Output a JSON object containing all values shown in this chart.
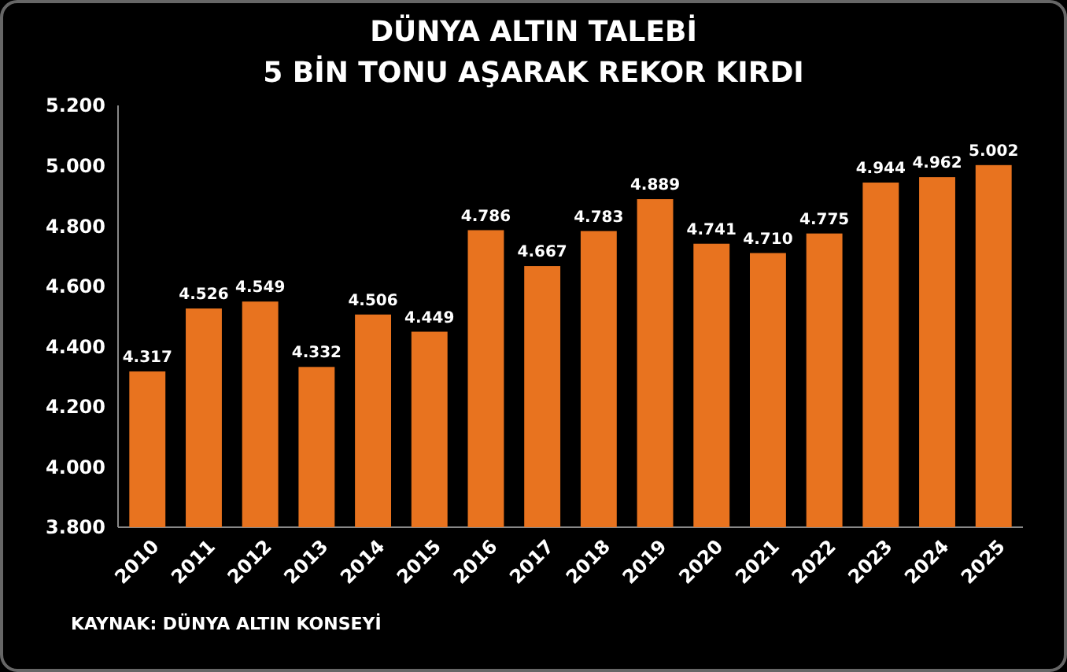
{
  "chart_data": {
    "type": "bar",
    "title": "DÜNYA ALTIN TALEBİ",
    "subtitle": "5 BİN TONU AŞARAK REKOR KIRDI",
    "categories": [
      "2010",
      "2011",
      "2012",
      "2013",
      "2014",
      "2015",
      "2016",
      "2017",
      "2018",
      "2019",
      "2020",
      "2021",
      "2022",
      "2023",
      "2024",
      "2025"
    ],
    "values": [
      4317,
      4526,
      4549,
      4332,
      4506,
      4449,
      4786,
      4667,
      4783,
      4889,
      4741,
      4710,
      4775,
      4944,
      4962,
      5002
    ],
    "value_labels": [
      "4.317",
      "4.526",
      "4.549",
      "4.332",
      "4.506",
      "4.449",
      "4.786",
      "4.667",
      "4.783",
      "4.889",
      "4.741",
      "4.710",
      "4.775",
      "4.944",
      "4.962",
      "5.002"
    ],
    "color": "#e8731f",
    "ylim": [
      3800,
      5200
    ],
    "yticks": [
      {
        "value": 3800,
        "label": "3.800"
      },
      {
        "value": 4000,
        "label": "4.000"
      },
      {
        "value": 4200,
        "label": "4.200"
      },
      {
        "value": 4400,
        "label": "4.400"
      },
      {
        "value": 4600,
        "label": "4.600"
      },
      {
        "value": 4800,
        "label": "4.800"
      },
      {
        "value": 5000,
        "label": "5.000"
      },
      {
        "value": 5200,
        "label": "5.200"
      }
    ],
    "grid": false,
    "annotations": [
      "KAYNAK: DÜNYA ALTIN KONSEYİ"
    ]
  }
}
